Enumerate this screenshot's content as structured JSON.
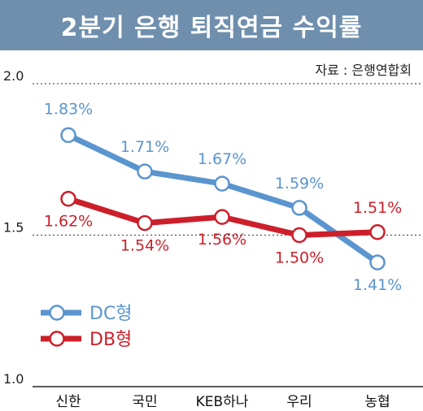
{
  "title": "2분기 은행 퇴직연금 수익률",
  "source": "자료 : 은행연합회",
  "chart_data": {
    "type": "line",
    "categories": [
      "신한",
      "국민",
      "KEB하나",
      "우리",
      "농협"
    ],
    "series": [
      {
        "name": "DC형",
        "values": [
          1.83,
          1.71,
          1.67,
          1.59,
          1.41
        ],
        "labels": [
          "1.83%",
          "1.71%",
          "1.67%",
          "1.59%",
          "1.41%"
        ],
        "color": "#5b95cf"
      },
      {
        "name": "DB형",
        "values": [
          1.62,
          1.54,
          1.56,
          1.5,
          1.51
        ],
        "labels": [
          "1.62%",
          "1.54%",
          "1.56%",
          "1.50%",
          "1.51%"
        ],
        "color": "#cc1f2a"
      }
    ],
    "ylim": [
      1.0,
      2.0
    ],
    "yticks": [
      "2.0",
      "1.5",
      "1.0"
    ],
    "grid": "dotted",
    "legend": "bottom-left"
  }
}
